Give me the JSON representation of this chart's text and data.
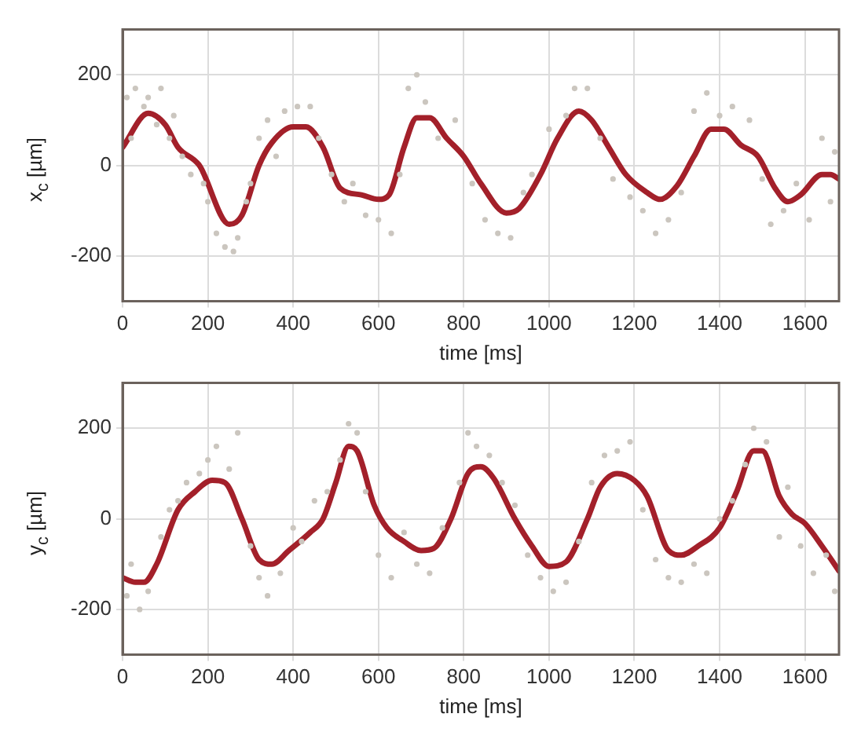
{
  "chart_data": [
    {
      "type": "line",
      "ylabel": "x$_{c}$ [µm]",
      "xlabel": "time [ms]",
      "xlim": [
        0,
        1680
      ],
      "xticks": [
        0,
        200,
        400,
        600,
        800,
        1000,
        1200,
        1400,
        1600
      ],
      "ylim": [
        -300,
        300
      ],
      "yticks": [
        -200,
        0,
        200
      ],
      "grid": true,
      "legend": false,
      "series": [
        {
          "type": "scatter",
          "color": "#cbc6bf",
          "x": [
            10,
            20,
            30,
            50,
            60,
            80,
            90,
            110,
            120,
            140,
            160,
            190,
            200,
            220,
            240,
            260,
            270,
            290,
            300,
            320,
            340,
            360,
            380,
            410,
            440,
            460,
            490,
            520,
            540,
            570,
            600,
            630,
            650,
            670,
            690,
            710,
            740,
            780,
            820,
            850,
            880,
            910,
            940,
            960,
            1000,
            1040,
            1060,
            1090,
            1120,
            1150,
            1190,
            1220,
            1250,
            1280,
            1310,
            1340,
            1370,
            1400,
            1430,
            1470,
            1500,
            1520,
            1550,
            1580,
            1610,
            1640,
            1660,
            1670
          ],
          "values": [
            150,
            60,
            170,
            130,
            150,
            90,
            170,
            60,
            110,
            20,
            -20,
            -40,
            -80,
            -150,
            -180,
            -190,
            -160,
            -80,
            -40,
            60,
            100,
            20,
            120,
            130,
            130,
            60,
            -20,
            -80,
            -40,
            -110,
            -120,
            -150,
            -20,
            170,
            200,
            140,
            60,
            100,
            -40,
            -120,
            -150,
            -160,
            -60,
            -20,
            80,
            110,
            170,
            170,
            60,
            -30,
            -70,
            -100,
            -150,
            -120,
            -60,
            120,
            160,
            110,
            130,
            100,
            -30,
            -130,
            -100,
            -40,
            -120,
            60,
            -80,
            30
          ]
        },
        {
          "type": "line",
          "color": "#a3202a",
          "x": [
            0,
            60,
            100,
            130,
            180,
            250,
            280,
            320,
            350,
            400,
            430,
            470,
            510,
            560,
            600,
            625,
            660,
            690,
            720,
            760,
            800,
            840,
            900,
            930,
            980,
            1020,
            1070,
            1100,
            1140,
            1180,
            1230,
            1260,
            1300,
            1340,
            1380,
            1410,
            1450,
            1490,
            1530,
            1560,
            1590,
            1640,
            1660,
            1680
          ],
          "values": [
            40,
            115,
            90,
            40,
            0,
            -130,
            -110,
            0,
            50,
            85,
            85,
            40,
            -50,
            -65,
            -75,
            -65,
            40,
            105,
            105,
            60,
            20,
            -40,
            -105,
            -95,
            -20,
            60,
            120,
            100,
            40,
            -20,
            -60,
            -75,
            -45,
            20,
            80,
            80,
            45,
            20,
            -50,
            -80,
            -65,
            -20,
            -20,
            -30
          ]
        }
      ]
    },
    {
      "type": "line",
      "ylabel": "y$_{c}$ [µm]",
      "xlabel": "time [ms]",
      "xlim": [
        0,
        1680
      ],
      "xticks": [
        0,
        200,
        400,
        600,
        800,
        1000,
        1200,
        1400,
        1600
      ],
      "ylim": [
        -300,
        300
      ],
      "yticks": [
        -200,
        0,
        200
      ],
      "grid": true,
      "legend": false,
      "series": [
        {
          "type": "scatter",
          "color": "#cbc6bf",
          "x": [
            10,
            20,
            40,
            60,
            90,
            110,
            130,
            150,
            180,
            200,
            220,
            250,
            270,
            300,
            320,
            340,
            370,
            400,
            420,
            450,
            480,
            510,
            530,
            550,
            570,
            600,
            630,
            660,
            690,
            720,
            750,
            790,
            810,
            830,
            860,
            890,
            920,
            950,
            980,
            1010,
            1040,
            1070,
            1100,
            1130,
            1160,
            1190,
            1220,
            1250,
            1280,
            1310,
            1340,
            1370,
            1400,
            1430,
            1460,
            1480,
            1510,
            1540,
            1560,
            1590,
            1620,
            1650,
            1670
          ],
          "values": [
            -170,
            -100,
            -200,
            -160,
            -40,
            20,
            40,
            80,
            100,
            130,
            160,
            110,
            190,
            -60,
            -130,
            -170,
            -120,
            -20,
            -50,
            40,
            60,
            130,
            210,
            190,
            60,
            -80,
            -130,
            -30,
            -100,
            -120,
            -20,
            80,
            190,
            160,
            140,
            80,
            30,
            -80,
            -130,
            -160,
            -140,
            -50,
            80,
            140,
            150,
            170,
            20,
            -90,
            -130,
            -140,
            -100,
            -120,
            0,
            40,
            120,
            200,
            170,
            -40,
            70,
            -60,
            -120,
            -80,
            -160
          ]
        },
        {
          "type": "line",
          "color": "#a3202a",
          "x": [
            0,
            30,
            50,
            80,
            130,
            170,
            210,
            240,
            280,
            320,
            350,
            390,
            440,
            470,
            500,
            530,
            550,
            590,
            620,
            660,
            700,
            730,
            770,
            810,
            840,
            870,
            920,
            960,
            1000,
            1040,
            1090,
            1120,
            1160,
            1200,
            1230,
            1280,
            1310,
            1350,
            1400,
            1440,
            1480,
            1500,
            1540,
            1570,
            1600,
            1640,
            1680
          ],
          "values": [
            -130,
            -140,
            -140,
            -100,
            20,
            60,
            85,
            80,
            0,
            -90,
            -100,
            -70,
            -30,
            0,
            80,
            160,
            150,
            30,
            -20,
            -50,
            -70,
            -65,
            0,
            100,
            115,
            90,
            0,
            -60,
            -105,
            -95,
            0,
            70,
            100,
            85,
            50,
            -70,
            -80,
            -60,
            -20,
            60,
            150,
            150,
            50,
            10,
            -10,
            -60,
            -115
          ]
        }
      ]
    }
  ]
}
